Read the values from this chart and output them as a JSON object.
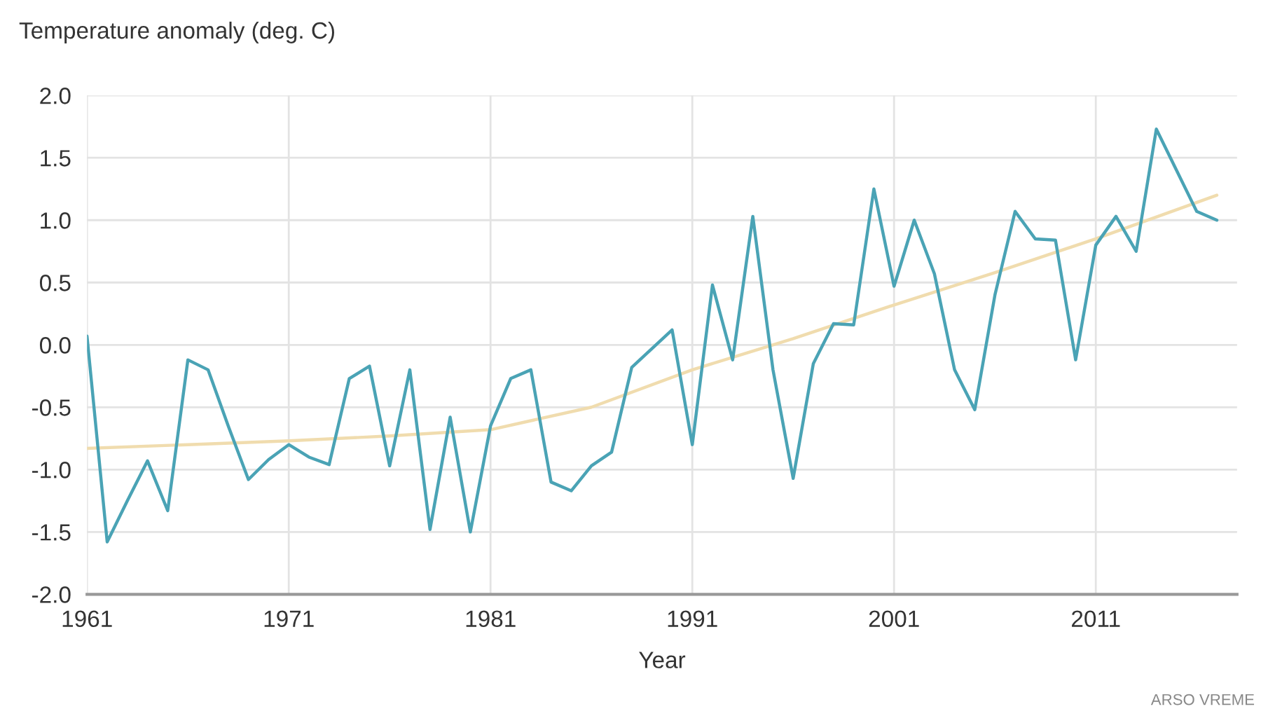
{
  "chart_data": {
    "type": "line",
    "ylabel": "Temperature anomaly (deg. C)",
    "xlabel": "Year",
    "series": [
      {
        "color": "#4aa3b5",
        "x": [
          1961,
          1962,
          1963,
          1964,
          1965,
          1966,
          1967,
          1968,
          1969,
          1970,
          1971,
          1972,
          1973,
          1974,
          1975,
          1976,
          1977,
          1978,
          1979,
          1980,
          1981,
          1982,
          1983,
          1984,
          1985,
          1986,
          1987,
          1988,
          1989,
          1990,
          1991,
          1992,
          1993,
          1994,
          1995,
          1996,
          1997,
          1998,
          1999,
          2000,
          2001,
          2002,
          2003,
          2004,
          2005,
          2006,
          2007,
          2008,
          2009,
          2010,
          2011,
          2012,
          2013,
          2014,
          2015,
          2016,
          2017
        ],
        "values": [
          0.07,
          -1.58,
          -1.25,
          -0.93,
          -1.33,
          -0.12,
          -0.2,
          -0.65,
          -1.08,
          -0.92,
          -0.8,
          -0.9,
          -0.96,
          -0.27,
          -0.17,
          -0.97,
          -0.2,
          -1.48,
          -0.58,
          -1.5,
          -0.65,
          -0.27,
          -0.2,
          -1.1,
          -1.17,
          -0.97,
          -0.86,
          -0.18,
          -0.03,
          0.12,
          -0.8,
          0.48,
          -0.12,
          1.03,
          -0.2,
          -1.07,
          -0.15,
          0.17,
          0.16,
          1.25,
          0.47,
          1.0,
          0.57,
          -0.2,
          -0.52,
          0.4,
          1.07,
          0.85,
          0.84,
          -0.12,
          0.8,
          1.03,
          0.75,
          1.73,
          1.4,
          1.07,
          1.0
        ]
      },
      {
        "color": "#f0dcae",
        "x": [
          1961,
          1966,
          1971,
          1976,
          1981,
          1986,
          1991,
          1996,
          2001,
          2006,
          2011,
          2017
        ],
        "values": [
          -0.83,
          -0.8,
          -0.77,
          -0.73,
          -0.68,
          -0.5,
          -0.2,
          0.05,
          0.32,
          0.58,
          0.85,
          1.2
        ]
      }
    ],
    "xlim": [
      1961,
      2018
    ],
    "xticks": [
      1961,
      1971,
      1981,
      1991,
      2001,
      2011
    ],
    "ylim": [
      -2.0,
      2.0
    ],
    "yticks": [
      {
        "value": -2.0,
        "label": "-2.0"
      },
      {
        "value": -1.5,
        "label": "-1.5"
      },
      {
        "value": -1.0,
        "label": "-1.0"
      },
      {
        "value": -0.5,
        "label": "-0.5"
      },
      {
        "value": 0.0,
        "label": "0.0"
      },
      {
        "value": 0.5,
        "label": "0.5"
      },
      {
        "value": 1.0,
        "label": "1.0"
      },
      {
        "value": 1.5,
        "label": "1.5"
      },
      {
        "value": 2.0,
        "label": "2.0"
      }
    ],
    "grid": true,
    "annotations": [
      "ARSO VREME"
    ]
  }
}
